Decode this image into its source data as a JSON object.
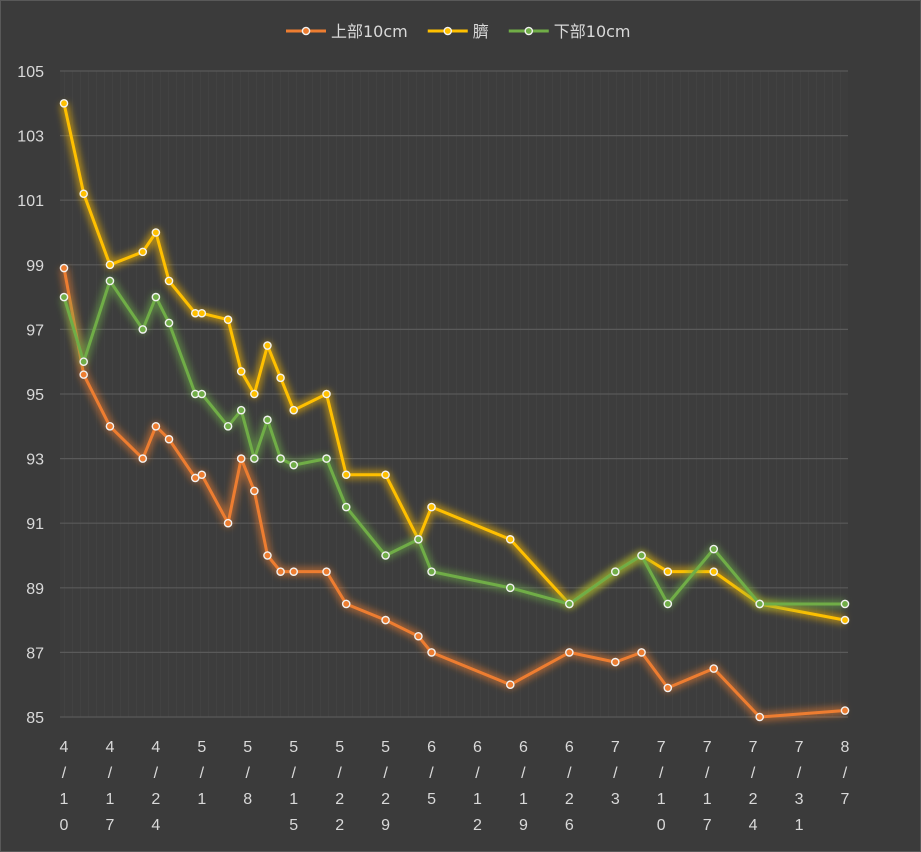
{
  "chart_data": {
    "type": "line",
    "title": "",
    "xlabel": "",
    "ylabel": "",
    "ylim": [
      85,
      105
    ],
    "yticks": [
      105,
      103,
      101,
      99,
      97,
      95,
      93,
      91,
      89,
      87,
      85
    ],
    "grid": true,
    "legend_position": "top-center",
    "x_axis_ticks": [
      "4/10",
      "4/17",
      "4/24",
      "5/1",
      "5/8",
      "5/15",
      "5/22",
      "5/29",
      "6/5",
      "6/12",
      "6/19",
      "6/26",
      "7/3",
      "7/10",
      "7/17",
      "7/24",
      "7/31",
      "8/7"
    ],
    "series": [
      {
        "name": "上部10cm",
        "color": "#ed7d31",
        "points": [
          {
            "x": "4/10",
            "y": 98.9
          },
          {
            "x": "4/13",
            "y": 95.6
          },
          {
            "x": "4/17",
            "y": 94.0
          },
          {
            "x": "4/22",
            "y": 93.0
          },
          {
            "x": "4/24",
            "y": 94.0
          },
          {
            "x": "4/26",
            "y": 93.6
          },
          {
            "x": "4/30",
            "y": 92.4
          },
          {
            "x": "5/1",
            "y": 92.5
          },
          {
            "x": "5/5",
            "y": 91.0
          },
          {
            "x": "5/7",
            "y": 93.0
          },
          {
            "x": "5/9",
            "y": 92.0
          },
          {
            "x": "5/11",
            "y": 90.0
          },
          {
            "x": "5/13",
            "y": 89.5
          },
          {
            "x": "5/15",
            "y": 89.5
          },
          {
            "x": "5/20",
            "y": 89.5
          },
          {
            "x": "5/23",
            "y": 88.5
          },
          {
            "x": "5/29",
            "y": 88.0
          },
          {
            "x": "6/3",
            "y": 87.5
          },
          {
            "x": "6/5",
            "y": 87.0
          },
          {
            "x": "6/17",
            "y": 86.0
          },
          {
            "x": "6/26",
            "y": 87.0
          },
          {
            "x": "7/3",
            "y": 86.7
          },
          {
            "x": "7/7",
            "y": 87.0
          },
          {
            "x": "7/11",
            "y": 85.9
          },
          {
            "x": "7/18",
            "y": 86.5
          },
          {
            "x": "7/25",
            "y": 85.0
          },
          {
            "x": "8/7",
            "y": 85.2
          }
        ]
      },
      {
        "name": "臍",
        "color": "#ffc000",
        "points": [
          {
            "x": "4/10",
            "y": 104.0
          },
          {
            "x": "4/13",
            "y": 101.2
          },
          {
            "x": "4/17",
            "y": 99.0
          },
          {
            "x": "4/22",
            "y": 99.4
          },
          {
            "x": "4/24",
            "y": 100.0
          },
          {
            "x": "4/26",
            "y": 98.5
          },
          {
            "x": "4/30",
            "y": 97.5
          },
          {
            "x": "5/1",
            "y": 97.5
          },
          {
            "x": "5/5",
            "y": 97.3
          },
          {
            "x": "5/7",
            "y": 95.7
          },
          {
            "x": "5/9",
            "y": 95.0
          },
          {
            "x": "5/11",
            "y": 96.5
          },
          {
            "x": "5/13",
            "y": 95.5
          },
          {
            "x": "5/15",
            "y": 94.5
          },
          {
            "x": "5/20",
            "y": 95.0
          },
          {
            "x": "5/23",
            "y": 92.5
          },
          {
            "x": "5/29",
            "y": 92.5
          },
          {
            "x": "6/3",
            "y": 90.5
          },
          {
            "x": "6/5",
            "y": 91.5
          },
          {
            "x": "6/17",
            "y": 90.5
          },
          {
            "x": "6/26",
            "y": 88.5
          },
          {
            "x": "7/3",
            "y": 89.5
          },
          {
            "x": "7/7",
            "y": 90.0
          },
          {
            "x": "7/11",
            "y": 89.5
          },
          {
            "x": "7/18",
            "y": 89.5
          },
          {
            "x": "7/25",
            "y": 88.5
          },
          {
            "x": "8/7",
            "y": 88.0
          }
        ]
      },
      {
        "name": "下部10cm",
        "color": "#70ad47",
        "points": [
          {
            "x": "4/10",
            "y": 98.0
          },
          {
            "x": "4/13",
            "y": 96.0
          },
          {
            "x": "4/17",
            "y": 98.5
          },
          {
            "x": "4/22",
            "y": 97.0
          },
          {
            "x": "4/24",
            "y": 98.0
          },
          {
            "x": "4/26",
            "y": 97.2
          },
          {
            "x": "4/30",
            "y": 95.0
          },
          {
            "x": "5/1",
            "y": 95.0
          },
          {
            "x": "5/5",
            "y": 94.0
          },
          {
            "x": "5/7",
            "y": 94.5
          },
          {
            "x": "5/9",
            "y": 93.0
          },
          {
            "x": "5/11",
            "y": 94.2
          },
          {
            "x": "5/13",
            "y": 93.0
          },
          {
            "x": "5/15",
            "y": 92.8
          },
          {
            "x": "5/20",
            "y": 93.0
          },
          {
            "x": "5/23",
            "y": 91.5
          },
          {
            "x": "5/29",
            "y": 90.0
          },
          {
            "x": "6/3",
            "y": 90.5
          },
          {
            "x": "6/5",
            "y": 89.5
          },
          {
            "x": "6/17",
            "y": 89.0
          },
          {
            "x": "6/26",
            "y": 88.5
          },
          {
            "x": "7/3",
            "y": 89.5
          },
          {
            "x": "7/7",
            "y": 90.0
          },
          {
            "x": "7/11",
            "y": 88.5
          },
          {
            "x": "7/18",
            "y": 90.2
          },
          {
            "x": "7/25",
            "y": 88.5
          },
          {
            "x": "8/7",
            "y": 88.5
          }
        ]
      }
    ]
  }
}
